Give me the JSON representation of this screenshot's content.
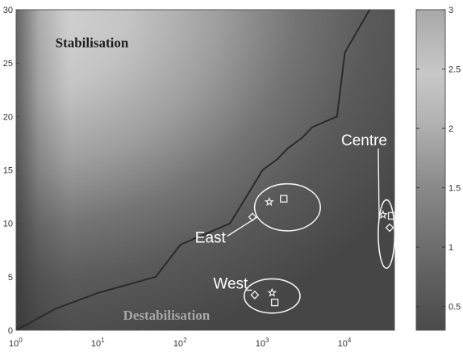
{
  "chart_data": {
    "type": "heatmap",
    "title": "",
    "xlabel": "",
    "ylabel": "",
    "x_scale": "log",
    "x_range": [
      1,
      40000
    ],
    "y_range": [
      0,
      30
    ],
    "x_ticks": [
      {
        "base": "10",
        "exp": "0",
        "value": 1
      },
      {
        "base": "10",
        "exp": "1",
        "value": 10
      },
      {
        "base": "10",
        "exp": "2",
        "value": 100
      },
      {
        "base": "10",
        "exp": "3",
        "value": 1000
      },
      {
        "base": "10",
        "exp": "4",
        "value": 10000
      }
    ],
    "y_ticks": [
      "0",
      "5",
      "10",
      "15",
      "20",
      "25",
      "30"
    ],
    "colorbar": {
      "range": [
        0.3,
        3
      ],
      "ticks": [
        "0.5",
        "1",
        "1.5",
        "2",
        "2.5",
        "3"
      ],
      "colormap": "gray"
    },
    "boundary_curve": {
      "x": [
        1,
        3,
        10,
        50,
        100,
        400,
        1000,
        1500,
        2000,
        3000,
        4000,
        8000,
        10000,
        20000
      ],
      "y": [
        0,
        2,
        3.5,
        5,
        8,
        10,
        15,
        16,
        17,
        18,
        19,
        20,
        26,
        30
      ]
    },
    "regions": [
      {
        "label": "Stabilisation",
        "x": 3,
        "y": 26.5,
        "color": "#1e1e1e"
      },
      {
        "label": "Destabilisation",
        "x": 20,
        "y": 1,
        "color": "#a8a8a8"
      }
    ],
    "groups": [
      {
        "label": "East",
        "ellipse": {
          "cx": 2000,
          "cy": 11.5,
          "rx_dec": 0.4,
          "ry": 2.2
        },
        "label_pos": {
          "x": 150,
          "y": 8.2
        },
        "markers": [
          {
            "shape": "diamond",
            "x": 750,
            "y": 10.6
          },
          {
            "shape": "star",
            "x": 1200,
            "y": 12
          },
          {
            "shape": "square",
            "x": 1800,
            "y": 12.3
          }
        ]
      },
      {
        "label": "West",
        "ellipse": {
          "cx": 1300,
          "cy": 3.2,
          "rx_dec": 0.34,
          "ry": 1.6
        },
        "label_pos": {
          "x": 250,
          "y": 3.9
        },
        "markers": [
          {
            "shape": "diamond",
            "x": 800,
            "y": 3.3
          },
          {
            "shape": "star",
            "x": 1300,
            "y": 3.5
          },
          {
            "shape": "square",
            "x": 1400,
            "y": 2.6
          }
        ]
      },
      {
        "label": "Centre",
        "ellipse": {
          "cx": 32000,
          "cy": 9,
          "rx_dec": 0.1,
          "ry": 3.2
        },
        "label_pos": {
          "x": 9000,
          "y": 17.3
        },
        "markers": [
          {
            "shape": "star",
            "x": 29000,
            "y": 10.8
          },
          {
            "shape": "square",
            "x": 37000,
            "y": 10.7
          },
          {
            "shape": "diamond",
            "x": 35000,
            "y": 9.6
          }
        ]
      }
    ]
  }
}
